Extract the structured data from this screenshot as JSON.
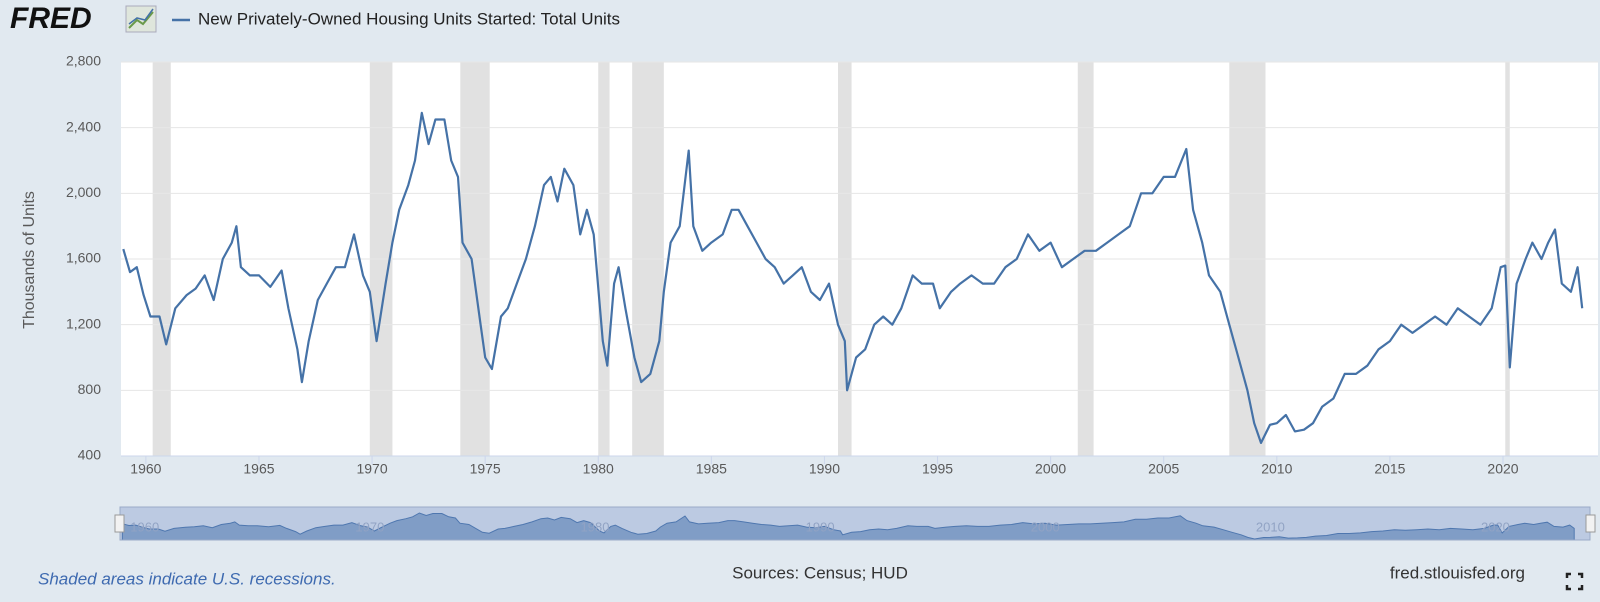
{
  "chart_data": {
    "type": "line",
    "logo": "FRED",
    "y_label": "Thousands of Units",
    "note": "Shaded areas indicate U.S. recessions.",
    "source": "Sources: Census; HUD",
    "site": "fred.stlouisfed.org",
    "xlim": [
      1958.9,
      2024.2
    ],
    "ylim": [
      400,
      2800
    ],
    "xticks": [
      1960,
      1965,
      1970,
      1975,
      1980,
      1985,
      1990,
      1995,
      2000,
      2005,
      2010,
      2015,
      2020
    ],
    "yticks": [
      400,
      800,
      {
        "value": 1200,
        "label": "1,200"
      },
      {
        "value": 1600,
        "label": "1,600"
      },
      {
        "value": 2000,
        "label": "2,000"
      },
      {
        "value": 2400,
        "label": "2,400"
      },
      {
        "value": 2800,
        "label": "2,800"
      }
    ],
    "navigator_xticks": [
      1960,
      1970,
      1980,
      1990,
      2000,
      2010,
      2020
    ],
    "grid": true,
    "recessions": [
      [
        1960.3,
        1961.1
      ],
      [
        1969.9,
        1970.9
      ],
      [
        1973.9,
        1975.2
      ],
      [
        1980.0,
        1980.5
      ],
      [
        1981.5,
        1982.9
      ],
      [
        1990.6,
        1991.2
      ],
      [
        2001.2,
        2001.9
      ],
      [
        2007.9,
        2009.5
      ],
      [
        2020.1,
        2020.3
      ]
    ],
    "x": [
      1959.0,
      1959.3,
      1959.6,
      1959.9,
      1960.2,
      1960.6,
      1960.9,
      1961.3,
      1961.8,
      1962.2,
      1962.6,
      1963.0,
      1963.4,
      1963.8,
      1964.0,
      1964.2,
      1964.6,
      1965.0,
      1965.5,
      1966.0,
      1966.3,
      1966.7,
      1966.9,
      1967.2,
      1967.6,
      1968.0,
      1968.4,
      1968.8,
      1969.2,
      1969.6,
      1969.9,
      1970.2,
      1970.6,
      1970.9,
      1971.2,
      1971.6,
      1971.9,
      1972.2,
      1972.5,
      1972.8,
      1973.2,
      1973.5,
      1973.8,
      1974.0,
      1974.4,
      1974.8,
      1975.0,
      1975.3,
      1975.7,
      1976.0,
      1976.4,
      1976.8,
      1977.2,
      1977.6,
      1977.9,
      1978.2,
      1978.5,
      1978.9,
      1979.2,
      1979.5,
      1979.8,
      1980.2,
      1980.4,
      1980.7,
      1980.9,
      1981.2,
      1981.6,
      1981.9,
      1982.3,
      1982.7,
      1982.9,
      1983.2,
      1983.6,
      1984.0,
      1984.2,
      1984.6,
      1985.0,
      1985.5,
      1985.9,
      1986.2,
      1986.6,
      1987.0,
      1987.4,
      1987.8,
      1988.2,
      1988.6,
      1989.0,
      1989.4,
      1989.8,
      1990.2,
      1990.6,
      1990.9,
      1991.0,
      1991.4,
      1991.8,
      1992.2,
      1992.6,
      1993.0,
      1993.4,
      1993.9,
      1994.3,
      1994.8,
      1995.1,
      1995.6,
      1996.0,
      1996.5,
      1997.0,
      1997.5,
      1998.0,
      1998.5,
      1999.0,
      1999.5,
      2000.0,
      2000.5,
      2001.0,
      2001.5,
      2002.0,
      2002.5,
      2003.0,
      2003.5,
      2004.0,
      2004.5,
      2005.0,
      2005.5,
      2006.0,
      2006.3,
      2006.7,
      2007.0,
      2007.5,
      2007.9,
      2008.3,
      2008.7,
      2009.0,
      2009.3,
      2009.7,
      2010.0,
      2010.4,
      2010.8,
      2011.2,
      2011.6,
      2012.0,
      2012.5,
      2013.0,
      2013.5,
      2014.0,
      2014.5,
      2015.0,
      2015.5,
      2016.0,
      2016.5,
      2017.0,
      2017.5,
      2018.0,
      2018.5,
      2019.0,
      2019.5,
      2019.9,
      2020.1,
      2020.3,
      2020.6,
      2021.0,
      2021.3,
      2021.7,
      2022.0,
      2022.3,
      2022.6,
      2023.0,
      2023.3,
      2023.5
    ],
    "series": [
      {
        "name": "New Privately-Owned Housing Units Started: Total Units",
        "color": "#4572a7",
        "values": [
          1660,
          1520,
          1550,
          1380,
          1250,
          1250,
          1080,
          1300,
          1380,
          1420,
          1500,
          1350,
          1600,
          1700,
          1800,
          1550,
          1500,
          1500,
          1430,
          1530,
          1300,
          1050,
          850,
          1100,
          1350,
          1450,
          1550,
          1550,
          1750,
          1500,
          1400,
          1100,
          1450,
          1700,
          1900,
          2050,
          2200,
          2490,
          2300,
          2450,
          2450,
          2200,
          2100,
          1700,
          1600,
          1200,
          1000,
          930,
          1250,
          1300,
          1450,
          1600,
          1800,
          2050,
          2100,
          1950,
          2150,
          2050,
          1750,
          1900,
          1750,
          1100,
          950,
          1450,
          1550,
          1300,
          1000,
          850,
          900,
          1100,
          1400,
          1700,
          1800,
          2260,
          1800,
          1650,
          1700,
          1750,
          1900,
          1900,
          1800,
          1700,
          1600,
          1550,
          1450,
          1500,
          1550,
          1400,
          1350,
          1450,
          1200,
          1100,
          800,
          1000,
          1050,
          1200,
          1250,
          1200,
          1300,
          1500,
          1450,
          1450,
          1300,
          1400,
          1450,
          1500,
          1450,
          1450,
          1550,
          1600,
          1750,
          1650,
          1700,
          1550,
          1600,
          1650,
          1650,
          1700,
          1750,
          1800,
          2000,
          2000,
          2100,
          2100,
          2270,
          1900,
          1700,
          1500,
          1400,
          1200,
          1000,
          800,
          600,
          480,
          590,
          600,
          650,
          550,
          560,
          600,
          700,
          750,
          900,
          900,
          950,
          1050,
          1100,
          1200,
          1150,
          1200,
          1250,
          1200,
          1300,
          1250,
          1200,
          1300,
          1550,
          1560,
          940,
          1450,
          1600,
          1700,
          1600,
          1700,
          1780,
          1450,
          1400,
          1550,
          1300
        ]
      }
    ]
  }
}
